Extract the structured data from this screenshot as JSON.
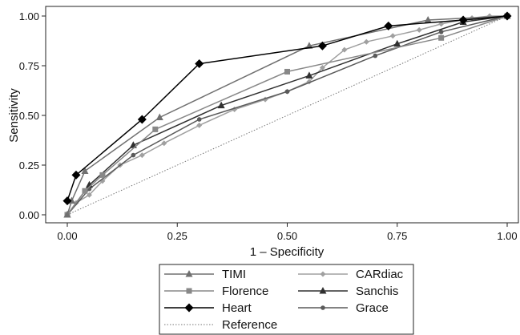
{
  "chart_data": {
    "type": "line",
    "xlabel": "1 – Specificity",
    "ylabel": "Sensitivity",
    "xlim": [
      0,
      1
    ],
    "ylim": [
      0,
      1
    ],
    "x_ticks": [
      "0.00",
      "0.25",
      "0.50",
      "0.75",
      "1.00"
    ],
    "y_ticks": [
      "0.00",
      "0.25",
      "0.50",
      "0.75",
      "1.00"
    ],
    "grid": false,
    "legend_position": "bottom",
    "series": [
      {
        "name": "TIMI",
        "color": "#707070",
        "marker": "triangle",
        "x": [
          0.0,
          0.01,
          0.04,
          0.21,
          0.55,
          0.82,
          1.0
        ],
        "y": [
          0.0,
          0.07,
          0.22,
          0.49,
          0.85,
          0.98,
          1.0
        ]
      },
      {
        "name": "CARdiac",
        "color": "#a0a0a0",
        "marker": "diamond",
        "x": [
          0.0,
          0.02,
          0.05,
          0.08,
          0.12,
          0.17,
          0.22,
          0.3,
          0.38,
          0.45,
          0.5,
          0.55,
          0.58,
          0.63,
          0.68,
          0.74,
          0.8,
          0.85,
          0.92,
          0.96,
          1.0
        ],
        "y": [
          0.0,
          0.06,
          0.1,
          0.17,
          0.25,
          0.3,
          0.36,
          0.45,
          0.53,
          0.58,
          0.62,
          0.67,
          0.74,
          0.83,
          0.87,
          0.9,
          0.93,
          0.96,
          0.99,
          1.0,
          1.0
        ]
      },
      {
        "name": "Florence",
        "color": "#888888",
        "marker": "square",
        "x": [
          0.0,
          0.04,
          0.08,
          0.2,
          0.5,
          0.85,
          1.0
        ],
        "y": [
          0.0,
          0.12,
          0.2,
          0.43,
          0.72,
          0.89,
          1.0
        ]
      },
      {
        "name": "Sanchis",
        "color": "#303030",
        "marker": "triangle",
        "x": [
          0.0,
          0.05,
          0.15,
          0.35,
          0.55,
          0.75,
          0.9,
          1.0
        ],
        "y": [
          0.0,
          0.15,
          0.35,
          0.55,
          0.7,
          0.86,
          0.97,
          1.0
        ]
      },
      {
        "name": "Heart",
        "color": "#000000",
        "marker": "diamond-filled",
        "x": [
          0.0,
          0.02,
          0.17,
          0.3,
          0.58,
          0.73,
          0.9,
          1.0
        ],
        "y": [
          0.07,
          0.2,
          0.48,
          0.76,
          0.85,
          0.95,
          0.98,
          1.0
        ]
      },
      {
        "name": "Grace",
        "color": "#5a5a5a",
        "marker": "circle",
        "x": [
          0.0,
          0.05,
          0.15,
          0.3,
          0.5,
          0.7,
          0.85,
          1.0
        ],
        "y": [
          0.0,
          0.13,
          0.3,
          0.48,
          0.62,
          0.8,
          0.92,
          1.0
        ]
      },
      {
        "name": "Reference",
        "color": "#777777",
        "marker": "none",
        "dashed": true,
        "x": [
          0.0,
          1.0
        ],
        "y": [
          0.0,
          1.0
        ]
      }
    ]
  }
}
